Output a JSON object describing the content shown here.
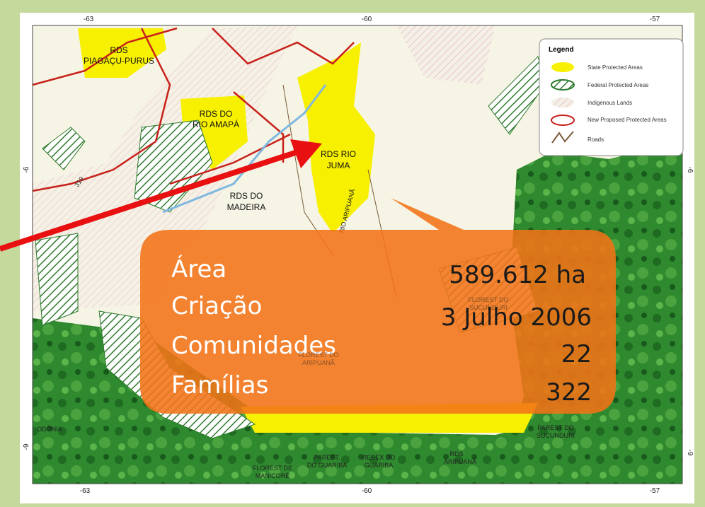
{
  "map": {
    "ticks": {
      "top": [
        "-63",
        "-60",
        "-57"
      ],
      "bottom": [
        "-63",
        "-60",
        "-57"
      ],
      "left": [
        "-6",
        "-9"
      ],
      "right": [
        "-6",
        "-9"
      ]
    },
    "regions": [
      {
        "lines": [
          "RDS",
          "PIAGAÇU-PURUS"
        ]
      },
      {
        "lines": [
          "RDS DO",
          "RIO AMAPÁ"
        ]
      },
      {
        "lines": [
          "RDS RIO",
          "JUMA"
        ]
      },
      {
        "lines": [
          "RDS DO",
          "MADEIRA"
        ]
      },
      {
        "lines": [
          "PAREST DO",
          "SUCUNDURI"
        ]
      },
      {
        "lines": [
          "PAREST.",
          "DO GUARIBA"
        ]
      },
      {
        "lines": [
          "RESEX DO",
          "GUARIBA"
        ]
      },
      {
        "lines": [
          "RDS",
          "ARIPUANÃ"
        ]
      },
      {
        "lines": [
          "FLOREST DE",
          "MANICORÉ"
        ]
      },
      {
        "lines": [
          "FLOREST DO",
          "SUCUNDURI"
        ]
      },
      {
        "lines": [
          "FLOREST DO",
          "ARIPUANÃ"
        ]
      },
      {
        "lines": [
          "ODÔNIA"
        ]
      }
    ],
    "road_shield": "319",
    "river": "RIO ARIPUANÃ",
    "legend": {
      "title": "Legend",
      "items": [
        "State Protected Areas",
        "Federal Protected Areas",
        "Indigenous Lands",
        "New Proposed Protected Areas",
        "Roads"
      ]
    }
  },
  "callout": {
    "labels": [
      "Área",
      "Criação",
      "Comunidades",
      "Famílias"
    ],
    "values": [
      "589.612 ha",
      "3 Julho 2006",
      "22",
      "322"
    ]
  }
}
